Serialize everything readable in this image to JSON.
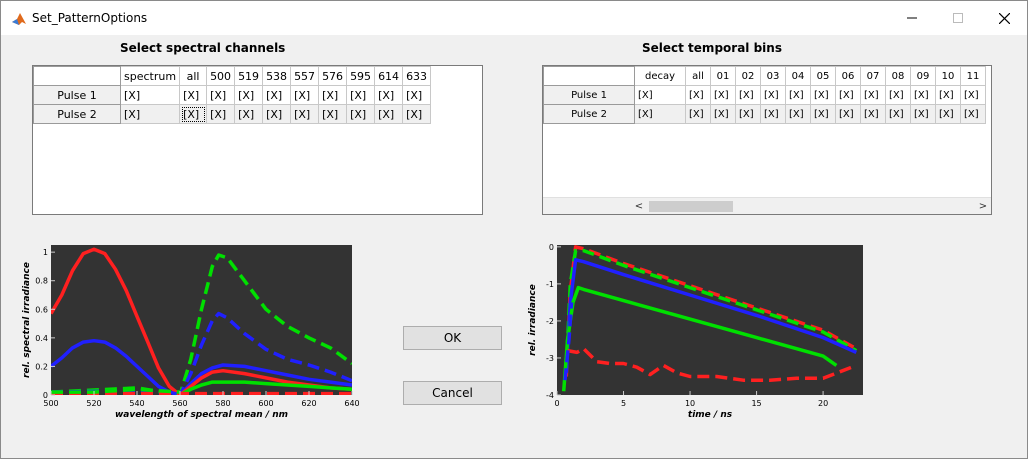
{
  "window": {
    "title": "Set_PatternOptions",
    "icon": "matlab-icon"
  },
  "spectral": {
    "heading": "Select spectral channels",
    "columns": [
      "spectrum",
      "all",
      "500",
      "519",
      "538",
      "557",
      "576",
      "595",
      "614",
      "633"
    ],
    "rows": [
      {
        "label": "Pulse 1",
        "cells": [
          "[X]",
          "[X]",
          "[X]",
          "[X]",
          "[X]",
          "[X]",
          "[X]",
          "[X]",
          "[X]",
          "[X]"
        ]
      },
      {
        "label": "Pulse 2",
        "cells": [
          "[X]",
          "[X]",
          "[X]",
          "[X]",
          "[X]",
          "[X]",
          "[X]",
          "[X]",
          "[X]",
          "[X]"
        ]
      }
    ]
  },
  "temporal": {
    "heading": "Select temporal bins",
    "columns": [
      "decay",
      "all",
      "01",
      "02",
      "03",
      "04",
      "05",
      "06",
      "07",
      "08",
      "09",
      "10",
      "11"
    ],
    "rows": [
      {
        "label": "Pulse 1",
        "cells": [
          "[X]",
          "[X]",
          "[X]",
          "[X]",
          "[X]",
          "[X]",
          "[X]",
          "[X]",
          "[X]",
          "[X]",
          "[X]",
          "[X]",
          "[X]"
        ]
      },
      {
        "label": "Pulse 2",
        "cells": [
          "[X]",
          "[X]",
          "[X]",
          "[X]",
          "[X]",
          "[X]",
          "[X]",
          "[X]",
          "[X]",
          "[X]",
          "[X]",
          "[X]",
          "[X]"
        ]
      }
    ],
    "scroll_left": "<",
    "scroll_right": ">"
  },
  "buttons": {
    "ok": "OK",
    "cancel": "Cancel"
  },
  "chart_data": [
    {
      "type": "line",
      "xlabel": "wavelength of spectral mean / nm",
      "ylabel": "rel. spectral irradiance",
      "xlim": [
        500,
        640
      ],
      "ylim": [
        0,
        1.05
      ],
      "xticks": [
        500,
        520,
        540,
        560,
        580,
        600,
        620,
        640
      ],
      "yticks": [
        0,
        0.2,
        0.4,
        0.6,
        0.8,
        1
      ],
      "background": "#333333",
      "series": [
        {
          "color": "#ff2020",
          "style": "solid",
          "x": [
            500,
            505,
            510,
            515,
            520,
            525,
            530,
            535,
            540,
            545,
            550,
            555,
            560
          ],
          "y": [
            0.57,
            0.7,
            0.87,
            0.99,
            1.02,
            0.99,
            0.88,
            0.73,
            0.55,
            0.37,
            0.19,
            0.06,
            0.0
          ]
        },
        {
          "color": "#2020ff",
          "style": "solid",
          "x": [
            500,
            505,
            510,
            515,
            520,
            525,
            530,
            535,
            540,
            545,
            550,
            555,
            560
          ],
          "y": [
            0.2,
            0.26,
            0.33,
            0.37,
            0.38,
            0.37,
            0.33,
            0.27,
            0.2,
            0.13,
            0.06,
            0.02,
            0.0
          ]
        },
        {
          "color": "#00e000",
          "style": "dashed",
          "x": [
            500,
            540,
            560,
            565,
            570,
            575,
            578,
            582,
            590,
            600,
            610,
            620,
            630,
            640
          ],
          "y": [
            0.02,
            0.05,
            0.0,
            0.25,
            0.6,
            0.9,
            0.98,
            0.96,
            0.8,
            0.6,
            0.48,
            0.4,
            0.33,
            0.22
          ]
        },
        {
          "color": "#2020ff",
          "style": "dashed",
          "x": [
            500,
            540,
            560,
            565,
            570,
            575,
            578,
            582,
            590,
            600,
            610,
            620,
            630,
            640
          ],
          "y": [
            0.02,
            0.03,
            0.0,
            0.15,
            0.35,
            0.52,
            0.57,
            0.54,
            0.43,
            0.32,
            0.25,
            0.21,
            0.16,
            0.1
          ]
        },
        {
          "color": "#2020ff",
          "style": "solid",
          "x": [
            560,
            565,
            570,
            575,
            580,
            590,
            600,
            610,
            620,
            630,
            640
          ],
          "y": [
            0.0,
            0.08,
            0.15,
            0.19,
            0.21,
            0.2,
            0.17,
            0.14,
            0.11,
            0.09,
            0.07
          ]
        },
        {
          "color": "#ff2020",
          "style": "solid",
          "x": [
            560,
            565,
            570,
            575,
            580,
            590,
            600,
            610,
            620,
            630,
            640
          ],
          "y": [
            0.0,
            0.06,
            0.12,
            0.16,
            0.17,
            0.15,
            0.12,
            0.09,
            0.07,
            0.05,
            0.04
          ]
        },
        {
          "color": "#00e000",
          "style": "solid",
          "x": [
            560,
            565,
            570,
            575,
            580,
            590,
            600,
            610,
            620,
            630,
            640
          ],
          "y": [
            0.0,
            0.04,
            0.07,
            0.09,
            0.09,
            0.09,
            0.08,
            0.07,
            0.06,
            0.05,
            0.04
          ]
        },
        {
          "color": "#ff2020",
          "style": "dashed",
          "x": [
            500,
            560,
            600,
            640
          ],
          "y": [
            0.01,
            0.01,
            0.01,
            0.01
          ]
        },
        {
          "color": "#00e000",
          "style": "dashed",
          "x": [
            500,
            520,
            540,
            560
          ],
          "y": [
            0.02,
            0.02,
            0.04,
            0.02
          ]
        }
      ]
    },
    {
      "type": "line",
      "xlabel": "time / ns",
      "ylabel": "rel. irradiance",
      "xlim": [
        0,
        23
      ],
      "ylim": [
        -4,
        0.05
      ],
      "xticks": [
        0,
        5,
        10,
        15,
        20
      ],
      "yticks": [
        0,
        -1,
        -2,
        -3,
        -4
      ],
      "background": "#333333",
      "series": [
        {
          "color": "#ff2020",
          "style": "dashed",
          "x": [
            0.7,
            1.0,
            1.4,
            2.0,
            5,
            10,
            15,
            20,
            22.5
          ],
          "y": [
            -3.5,
            -1.2,
            0.0,
            -0.05,
            -0.45,
            -1.05,
            -1.65,
            -2.25,
            -2.75
          ]
        },
        {
          "color": "#00e000",
          "style": "dashed",
          "x": [
            0.7,
            1.0,
            1.4,
            2.0,
            5,
            10,
            15,
            20,
            22.5
          ],
          "y": [
            -3.3,
            -1.0,
            -0.1,
            -0.1,
            -0.5,
            -1.1,
            -1.7,
            -2.3,
            -2.8
          ]
        },
        {
          "color": "#2020ff",
          "style": "solid",
          "x": [
            0.7,
            1.0,
            1.4,
            2.0,
            5,
            10,
            15,
            20,
            22.5
          ],
          "y": [
            -3.4,
            -1.5,
            -0.35,
            -0.4,
            -0.75,
            -1.3,
            -1.85,
            -2.45,
            -2.85
          ]
        },
        {
          "color": "#00e000",
          "style": "solid",
          "x": [
            0.5,
            0.8,
            1.2,
            1.6,
            2.0,
            5,
            10,
            15,
            20,
            21
          ],
          "y": [
            -3.9,
            -2.5,
            -1.5,
            -1.1,
            -1.15,
            -1.45,
            -1.95,
            -2.45,
            -2.95,
            -3.2
          ]
        },
        {
          "color": "#ff2020",
          "style": "dashed",
          "x": [
            0.8,
            1.5,
            2,
            3,
            4,
            5,
            6,
            7,
            8,
            9,
            10,
            12,
            14,
            16,
            18,
            20,
            22.5
          ],
          "y": [
            -2.8,
            -2.85,
            -2.75,
            -3.1,
            -3.15,
            -3.15,
            -3.25,
            -3.45,
            -3.2,
            -3.4,
            -3.5,
            -3.5,
            -3.6,
            -3.6,
            -3.55,
            -3.55,
            -3.2
          ]
        },
        {
          "color": "#2020ff",
          "style": "dashed",
          "x": [
            0.6,
            0.9,
            1.1
          ],
          "y": [
            -3.6,
            -2.5,
            -1.5
          ]
        }
      ]
    }
  ]
}
